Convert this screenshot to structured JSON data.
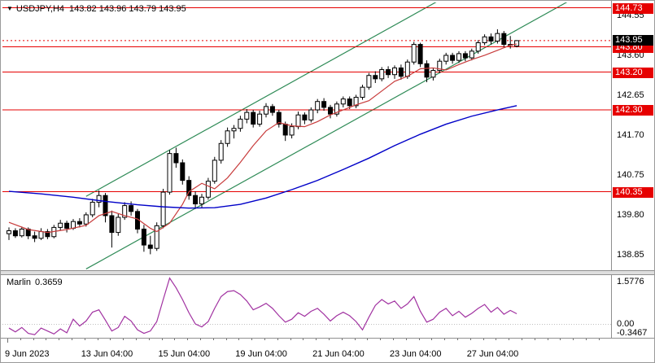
{
  "header": {
    "dropdown_icon": "▼",
    "symbol": "USDJPY,H4",
    "ohlc": "143.82 143.96 143.79 143.95"
  },
  "colors": {
    "level_line": "#e60000",
    "bid_background": "#000000",
    "candle_up_fill": "#ffffff",
    "candle_down_fill": "#000000",
    "candle_outline": "#000000",
    "ma_fast": "#c83c3c",
    "ma_slow": "#0000c8",
    "channel": "#2f8b57",
    "marlin": "#a132a1",
    "axis_text": "#000000"
  },
  "chart_data": {
    "type": "candlestick",
    "title": "USDJPY,H4",
    "legend_position": "top-left",
    "grid": false,
    "main_pane": {
      "ylim": [
        138.48,
        144.86
      ],
      "axis_ticks": [
        "144.55",
        "143.60",
        "142.65",
        "141.70",
        "140.75",
        "139.80",
        "138.85"
      ],
      "red_levels": [
        144.73,
        143.8,
        143.2,
        142.3,
        140.35
      ],
      "bid_price": 143.95,
      "bid_label": "143.95",
      "channel": {
        "slope_per_bar": 0.085,
        "from_bar": 12,
        "to_bar": 98,
        "lower_anchor": {
          "bar": 16,
          "price": 138.85
        },
        "upper_anchor": {
          "bar": 16,
          "price": 140.58
        }
      },
      "ma_fast_points": [
        [
          0,
          139.62
        ],
        [
          3,
          139.45
        ],
        [
          6,
          139.38
        ],
        [
          9,
          139.45
        ],
        [
          12,
          139.55
        ],
        [
          14,
          139.78
        ],
        [
          16,
          139.88
        ],
        [
          18,
          139.78
        ],
        [
          20,
          139.7
        ],
        [
          22,
          139.48
        ],
        [
          23,
          139.4
        ],
        [
          25,
          139.6
        ],
        [
          27,
          140.05
        ],
        [
          28,
          140.35
        ],
        [
          30,
          140.55
        ],
        [
          32,
          140.42
        ],
        [
          34,
          140.68
        ],
        [
          36,
          141.05
        ],
        [
          38,
          141.45
        ],
        [
          40,
          141.8
        ],
        [
          42,
          142.0
        ],
        [
          44,
          141.92
        ],
        [
          46,
          141.9
        ],
        [
          48,
          142.02
        ],
        [
          50,
          142.18
        ],
        [
          52,
          142.3
        ],
        [
          54,
          142.42
        ],
        [
          56,
          142.52
        ],
        [
          58,
          142.75
        ],
        [
          60,
          142.98
        ],
        [
          62,
          143.1
        ],
        [
          64,
          143.28
        ],
        [
          66,
          143.3
        ],
        [
          68,
          143.25
        ],
        [
          70,
          143.38
        ],
        [
          72,
          143.5
        ],
        [
          74,
          143.6
        ],
        [
          76,
          143.72
        ],
        [
          78,
          143.84
        ],
        [
          79,
          143.87
        ]
      ],
      "ma_slow_points": [
        [
          0,
          140.36
        ],
        [
          5,
          140.3
        ],
        [
          10,
          140.22
        ],
        [
          15,
          140.12
        ],
        [
          20,
          140.04
        ],
        [
          24,
          139.99
        ],
        [
          28,
          139.96
        ],
        [
          32,
          139.97
        ],
        [
          36,
          140.05
        ],
        [
          40,
          140.2
        ],
        [
          44,
          140.4
        ],
        [
          48,
          140.62
        ],
        [
          52,
          140.88
        ],
        [
          56,
          141.15
        ],
        [
          60,
          141.45
        ],
        [
          64,
          141.72
        ],
        [
          68,
          141.96
        ],
        [
          72,
          142.15
        ],
        [
          76,
          142.3
        ],
        [
          79,
          142.4
        ]
      ],
      "candles": [
        [
          139.35,
          139.5,
          139.2,
          139.42
        ],
        [
          139.42,
          139.48,
          139.25,
          139.3
        ],
        [
          139.3,
          139.52,
          139.26,
          139.46
        ],
        [
          139.46,
          139.5,
          139.22,
          139.3
        ],
        [
          139.3,
          139.4,
          139.15,
          139.24
        ],
        [
          139.24,
          139.48,
          139.2,
          139.4
        ],
        [
          139.4,
          139.46,
          139.22,
          139.28
        ],
        [
          139.28,
          139.56,
          139.24,
          139.5
        ],
        [
          139.5,
          139.68,
          139.42,
          139.6
        ],
        [
          139.6,
          139.66,
          139.38,
          139.48
        ],
        [
          139.48,
          139.7,
          139.44,
          139.64
        ],
        [
          139.64,
          139.72,
          139.5,
          139.58
        ],
        [
          139.58,
          139.86,
          139.52,
          139.8
        ],
        [
          139.8,
          140.18,
          139.74,
          140.1
        ],
        [
          140.1,
          140.38,
          139.98,
          140.26
        ],
        [
          140.26,
          140.32,
          139.62,
          139.78
        ],
        [
          139.78,
          139.9,
          139.02,
          139.38
        ],
        [
          139.38,
          139.82,
          139.3,
          139.74
        ],
        [
          139.74,
          140.1,
          139.68,
          140.02
        ],
        [
          140.02,
          140.12,
          139.78,
          139.88
        ],
        [
          139.88,
          139.94,
          139.36,
          139.46
        ],
        [
          139.46,
          139.56,
          138.92,
          139.08
        ],
        [
          139.08,
          139.3,
          138.86,
          139.0
        ],
        [
          139.0,
          139.62,
          138.94,
          139.54
        ],
        [
          139.54,
          140.42,
          139.48,
          140.34
        ],
        [
          140.34,
          141.34,
          140.28,
          141.26
        ],
        [
          141.26,
          141.4,
          140.92,
          141.04
        ],
        [
          141.04,
          141.12,
          140.52,
          140.62
        ],
        [
          140.62,
          140.72,
          140.16,
          140.26
        ],
        [
          140.26,
          140.36,
          139.94,
          140.06
        ],
        [
          140.06,
          140.3,
          139.96,
          140.22
        ],
        [
          140.22,
          140.68,
          140.16,
          140.6
        ],
        [
          140.6,
          141.18,
          140.54,
          141.1
        ],
        [
          141.1,
          141.58,
          141.02,
          141.5
        ],
        [
          141.5,
          141.88,
          141.42,
          141.8
        ],
        [
          141.8,
          141.94,
          141.62,
          141.86
        ],
        [
          141.86,
          142.16,
          141.78,
          142.08
        ],
        [
          142.08,
          142.32,
          141.98,
          142.24
        ],
        [
          142.24,
          142.3,
          141.88,
          141.96
        ],
        [
          141.96,
          142.28,
          141.9,
          142.2
        ],
        [
          142.2,
          142.46,
          142.12,
          142.38
        ],
        [
          142.38,
          142.44,
          142.16,
          142.24
        ],
        [
          142.24,
          142.3,
          141.88,
          141.96
        ],
        [
          141.96,
          142.02,
          141.56,
          141.7
        ],
        [
          141.7,
          141.98,
          141.62,
          141.9
        ],
        [
          141.9,
          142.26,
          141.84,
          142.18
        ],
        [
          142.18,
          142.24,
          141.96,
          142.06
        ],
        [
          142.06,
          142.36,
          142.0,
          142.3
        ],
        [
          142.3,
          142.56,
          142.22,
          142.5
        ],
        [
          142.5,
          142.58,
          142.28,
          142.36
        ],
        [
          142.36,
          142.42,
          142.1,
          142.2
        ],
        [
          142.2,
          142.5,
          142.14,
          142.44
        ],
        [
          142.44,
          142.62,
          142.36,
          142.56
        ],
        [
          142.56,
          142.62,
          142.32,
          142.4
        ],
        [
          142.4,
          142.66,
          142.34,
          142.6
        ],
        [
          142.6,
          142.9,
          142.54,
          142.84
        ],
        [
          142.84,
          143.18,
          142.78,
          143.12
        ],
        [
          143.12,
          143.22,
          142.94,
          143.04
        ],
        [
          143.04,
          143.32,
          142.98,
          143.26
        ],
        [
          143.26,
          143.34,
          143.06,
          143.14
        ],
        [
          143.14,
          143.36,
          143.04,
          143.3
        ],
        [
          143.3,
          143.38,
          143.02,
          143.1
        ],
        [
          143.1,
          143.5,
          143.04,
          143.44
        ],
        [
          143.44,
          143.92,
          143.38,
          143.86
        ],
        [
          143.86,
          143.9,
          143.32,
          143.4
        ],
        [
          143.4,
          143.48,
          142.96,
          143.08
        ],
        [
          143.08,
          143.3,
          143.0,
          143.24
        ],
        [
          143.24,
          143.52,
          143.18,
          143.46
        ],
        [
          143.46,
          143.66,
          143.38,
          143.6
        ],
        [
          143.6,
          143.66,
          143.4,
          143.48
        ],
        [
          143.48,
          143.7,
          143.42,
          143.64
        ],
        [
          143.64,
          143.7,
          143.46,
          143.54
        ],
        [
          143.54,
          143.76,
          143.48,
          143.7
        ],
        [
          143.7,
          143.96,
          143.64,
          143.9
        ],
        [
          143.9,
          144.1,
          143.84,
          144.04
        ],
        [
          144.04,
          144.12,
          143.86,
          143.94
        ],
        [
          143.94,
          144.22,
          143.88,
          144.12
        ],
        [
          144.12,
          144.18,
          143.8,
          143.86
        ],
        [
          143.86,
          144.06,
          143.76,
          143.84
        ],
        [
          143.82,
          143.96,
          143.79,
          143.95
        ]
      ]
    },
    "indicator_pane": {
      "name": "Marlin",
      "current": "0.3659",
      "max_label": "1.5776",
      "zero_label": "0.00",
      "min_label": "-0.3467",
      "ylim": [
        -0.45,
        1.68
      ],
      "values": [
        -0.12,
        -0.25,
        -0.1,
        -0.3,
        -0.3467,
        -0.12,
        -0.22,
        -0.32,
        -0.15,
        -0.28,
        0.18,
        -0.05,
        0.12,
        0.42,
        0.5,
        0.15,
        -0.22,
        -0.1,
        0.28,
        0.12,
        -0.18,
        -0.3,
        -0.22,
        0.1,
        0.85,
        1.5776,
        1.25,
        0.85,
        0.4,
        0.02,
        -0.08,
        0.1,
        0.55,
        0.95,
        1.12,
        1.15,
        1.02,
        0.8,
        0.5,
        0.6,
        0.72,
        0.55,
        0.3,
        0.08,
        0.18,
        0.4,
        0.28,
        0.45,
        0.55,
        0.35,
        0.12,
        0.3,
        0.42,
        0.3,
        0.1,
        -0.18,
        0.25,
        0.65,
        0.85,
        0.7,
        0.8,
        0.55,
        0.7,
        0.95,
        0.45,
        0.08,
        0.18,
        0.42,
        0.55,
        0.3,
        0.45,
        0.25,
        0.38,
        0.55,
        0.68,
        0.42,
        0.58,
        0.35,
        0.48,
        0.3659
      ]
    },
    "x_axis": {
      "labels": [
        {
          "text": "9 Jun 2023",
          "bar": 0
        },
        {
          "text": "13 Jun 04:00",
          "bar": 13
        },
        {
          "text": "15 Jun 04:00",
          "bar": 25
        },
        {
          "text": "19 Jun 04:00",
          "bar": 37
        },
        {
          "text": "21 Jun 04:00",
          "bar": 49
        },
        {
          "text": "23 Jun 04:00",
          "bar": 61
        },
        {
          "text": "27 Jun 04:00",
          "bar": 73
        }
      ]
    }
  }
}
